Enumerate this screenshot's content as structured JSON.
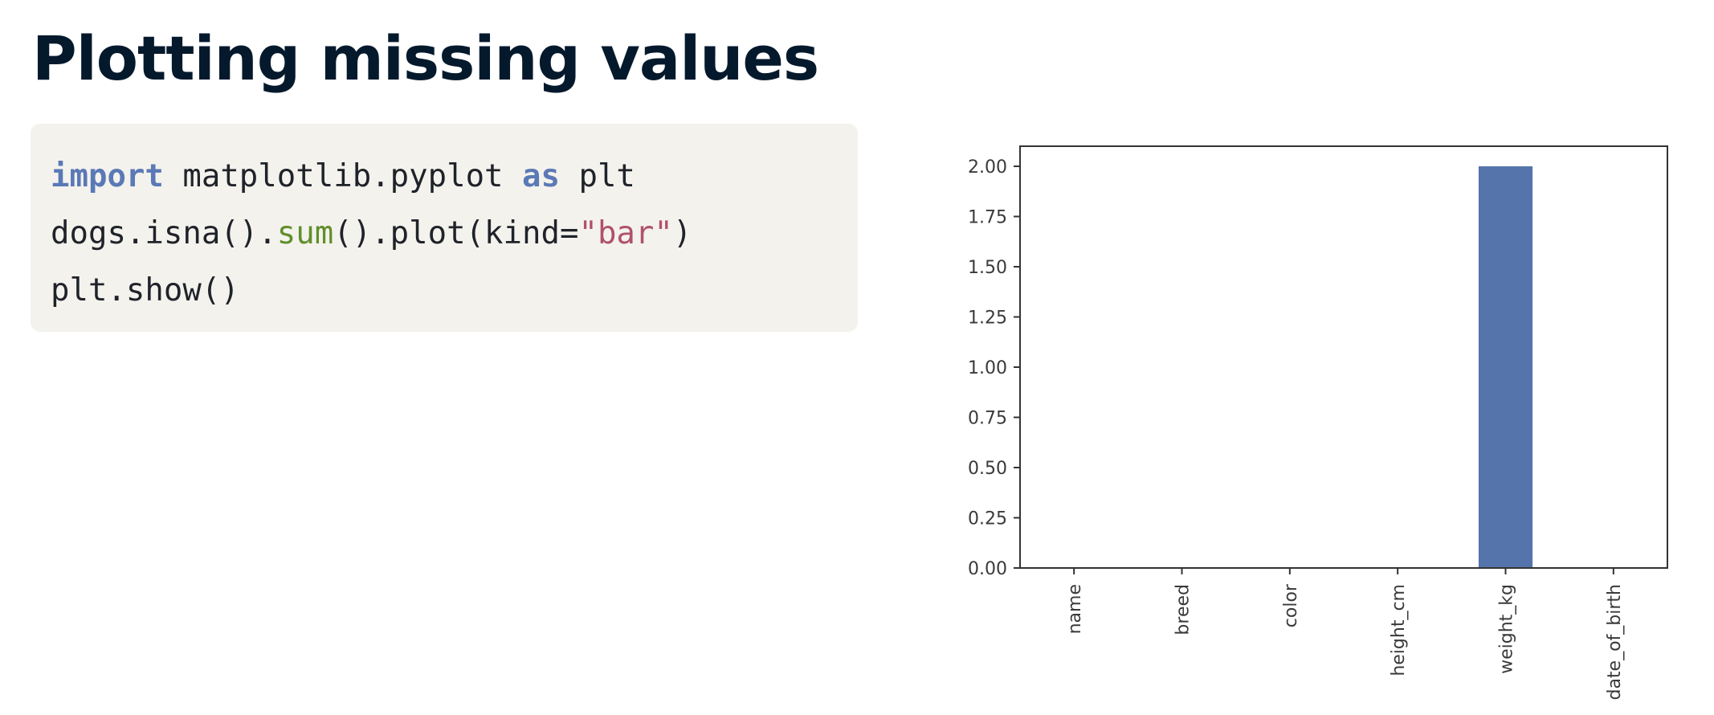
{
  "slide": {
    "title": "Plotting missing values"
  },
  "code": {
    "lines": [
      [
        {
          "text": "import",
          "kind": "keyword"
        },
        {
          "text": " matplotlib.pyplot ",
          "kind": "plain"
        },
        {
          "text": "as",
          "kind": "keyword"
        },
        {
          "text": " plt",
          "kind": "plain"
        }
      ],
      [
        {
          "text": "dogs.isna().",
          "kind": "plain"
        },
        {
          "text": "sum",
          "kind": "func"
        },
        {
          "text": "().plot(kind=",
          "kind": "plain"
        },
        {
          "text": "\"bar\"",
          "kind": "string"
        },
        {
          "text": ")",
          "kind": "plain"
        }
      ],
      [
        {
          "text": "plt.show()",
          "kind": "plain"
        }
      ]
    ]
  },
  "chart_data": {
    "type": "bar",
    "categories": [
      "name",
      "breed",
      "color",
      "height_cm",
      "weight_kg",
      "date_of_birth"
    ],
    "values": [
      0,
      0,
      0,
      0,
      2,
      0
    ],
    "ylim": [
      0,
      2.1
    ],
    "yticks": [
      "0.00",
      "0.25",
      "0.50",
      "0.75",
      "1.00",
      "1.25",
      "1.50",
      "1.75",
      "2.00"
    ],
    "title": "",
    "xlabel": "",
    "ylabel": "",
    "grid": false,
    "bar_color": "#5574ab"
  }
}
